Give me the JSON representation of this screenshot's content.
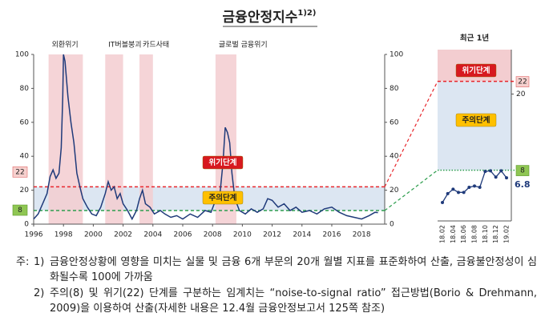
{
  "title": "금융안정지수",
  "title_superscript": "1)2)",
  "thresholds": [
    {
      "name": "위기단계",
      "value": 22,
      "color": "#e8262c"
    },
    {
      "name": "주의단계",
      "value": 8,
      "color": "#2e9e4e"
    }
  ],
  "chart_data": [
    {
      "type": "line",
      "xlim": [
        1996,
        2019.55
      ],
      "xticks": [
        1996,
        1998,
        2000,
        2002,
        2004,
        2006,
        2008,
        2010,
        2012,
        2014,
        2016,
        2018
      ],
      "ylim": [
        0,
        100
      ],
      "yticks": [
        0,
        20,
        40,
        60,
        80,
        100
      ],
      "y2lim": [
        0,
        100
      ],
      "y2ticks": [
        0,
        20,
        40,
        60,
        80,
        100
      ],
      "crisis_periods": [
        {
          "label": "외환위기",
          "start": 1997.0,
          "end": 1999.3
        },
        {
          "label": "IT버블붕괴",
          "start": 2000.8,
          "end": 2002.0
        },
        {
          "label": "카드사태",
          "start": 2003.1,
          "end": 2004.0
        },
        {
          "label": "글로벌 금융위기",
          "start": 2008.2,
          "end": 2009.6
        }
      ],
      "color": "#1f3a7a",
      "x": [
        1996.0,
        1996.3,
        1996.6,
        1996.9,
        1997.1,
        1997.3,
        1997.5,
        1997.7,
        1997.85,
        1997.95,
        1998.0,
        1998.1,
        1998.3,
        1998.5,
        1998.7,
        1998.9,
        1999.1,
        1999.3,
        1999.6,
        1999.9,
        2000.2,
        2000.5,
        2000.8,
        2001.0,
        2001.2,
        2001.4,
        2001.6,
        2001.8,
        2002.0,
        2002.3,
        2002.6,
        2002.9,
        2003.1,
        2003.3,
        2003.5,
        2003.8,
        2004.1,
        2004.5,
        2004.8,
        2005.2,
        2005.6,
        2006.0,
        2006.5,
        2007.0,
        2007.5,
        2007.9,
        2008.2,
        2008.5,
        2008.7,
        2008.85,
        2009.0,
        2009.15,
        2009.3,
        2009.5,
        2009.8,
        2010.2,
        2010.6,
        2011.0,
        2011.4,
        2011.7,
        2012.0,
        2012.4,
        2012.8,
        2013.2,
        2013.6,
        2014.0,
        2014.5,
        2015.0,
        2015.5,
        2016.0,
        2016.5,
        2017.0,
        2017.5,
        2018.0,
        2018.5,
        2018.9,
        2019.1
      ],
      "values": [
        3,
        6,
        12,
        18,
        28,
        32,
        27,
        30,
        45,
        75,
        100,
        96,
        75,
        60,
        48,
        30,
        22,
        15,
        10,
        6,
        5,
        10,
        18,
        25,
        20,
        22,
        15,
        18,
        12,
        8,
        3,
        8,
        15,
        20,
        12,
        10,
        6,
        8,
        6,
        4,
        5,
        3,
        6,
        4,
        8,
        7,
        14,
        18,
        36,
        57,
        54,
        48,
        30,
        15,
        8,
        6,
        9,
        7,
        9,
        15,
        14,
        10,
        12,
        8,
        10,
        7,
        8,
        6,
        9,
        10,
        7,
        5,
        4,
        3,
        5,
        7,
        6.8
      ]
    },
    {
      "type": "line",
      "title": "최근 1년",
      "categories": [
        "18.02",
        null,
        "18.04",
        null,
        "18.06",
        null,
        "18.08",
        null,
        "18.10",
        null,
        "18.12",
        null,
        "19.02"
      ],
      "values": [
        2.9,
        4.3,
        5,
        4.5,
        4.5,
        5.3,
        5.5,
        5.3,
        7.8,
        7.9,
        6.9,
        7.9,
        6.8
      ],
      "color": "#1f3a7a",
      "ylim": [
        0,
        27
      ],
      "yticks": [
        20
      ]
    }
  ],
  "notes": {
    "prefix": "주:",
    "items": [
      {
        "marker": "1)",
        "text": "금융안정상황에 영향을 미치는 실물 및 금융 6개 부문의 20개 월별 지표를 표준화하여 산출, 금융불안정성이 심화될수록 100에 가까움"
      },
      {
        "marker": "2)",
        "text": "주의(8) 및 위기(22) 단계를 구분하는 임계치는 “noise-to-signal ratio” 접근방법(Borio & Drehmann, 2009)을 이용하여 산출(자세한 내용은 12.4월 금융안정보고서 125쪽 참조)"
      }
    ]
  }
}
